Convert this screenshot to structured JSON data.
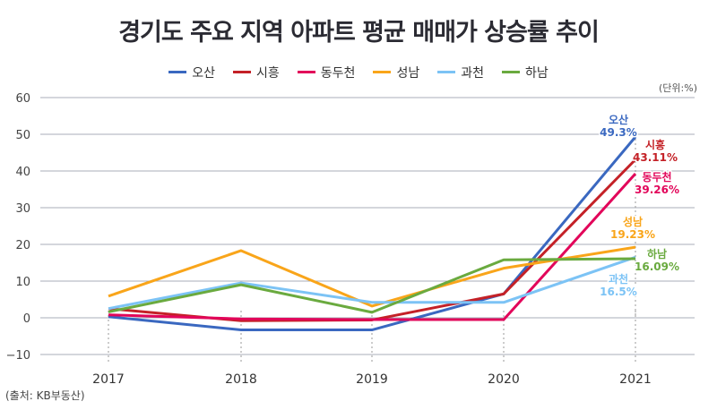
{
  "title": "경기도 주요 지역 아파트 평균 매매가 상승률 추이",
  "unit": "(단위:%)",
  "source": "(출처: KB부동산)",
  "chart_data": {
    "type": "line",
    "title": "경기도 주요 지역 아파트 평균 매매가 상승률 추이",
    "x": [
      "2017",
      "2018",
      "2019",
      "2020",
      "2021"
    ],
    "ylim": [
      -10,
      60
    ],
    "yticks": [
      "−10",
      "0",
      "10",
      "20",
      "30",
      "40",
      "50",
      "60"
    ],
    "ytick_values": [
      -10,
      0,
      10,
      20,
      30,
      40,
      50,
      60
    ],
    "grid": true,
    "legend": "top",
    "series": [
      {
        "name": "오산",
        "color": "#3a68c0",
        "values": [
          0.3,
          -3.3,
          -3.3,
          6.5,
          49.3
        ],
        "end_label": "49.3%"
      },
      {
        "name": "시흥",
        "color": "#c42127",
        "values": [
          2.5,
          -0.8,
          -0.6,
          6.5,
          43.11
        ],
        "end_label": "43.11%"
      },
      {
        "name": "동두천",
        "color": "#e2065a",
        "values": [
          0.8,
          -0.3,
          -0.5,
          -0.5,
          39.26
        ],
        "end_label": "39.26%"
      },
      {
        "name": "성남",
        "color": "#f9a51a",
        "values": [
          5.9,
          18.3,
          3.2,
          13.5,
          19.23
        ],
        "end_label": "19.23%"
      },
      {
        "name": "과천",
        "color": "#7cc3f5",
        "values": [
          2.5,
          9.5,
          4.2,
          4.2,
          16.5
        ],
        "end_label": "16.5%"
      },
      {
        "name": "하남",
        "color": "#6aaa3f",
        "values": [
          1.6,
          9.0,
          1.5,
          15.8,
          16.09
        ],
        "end_label": "16.09%"
      }
    ]
  }
}
